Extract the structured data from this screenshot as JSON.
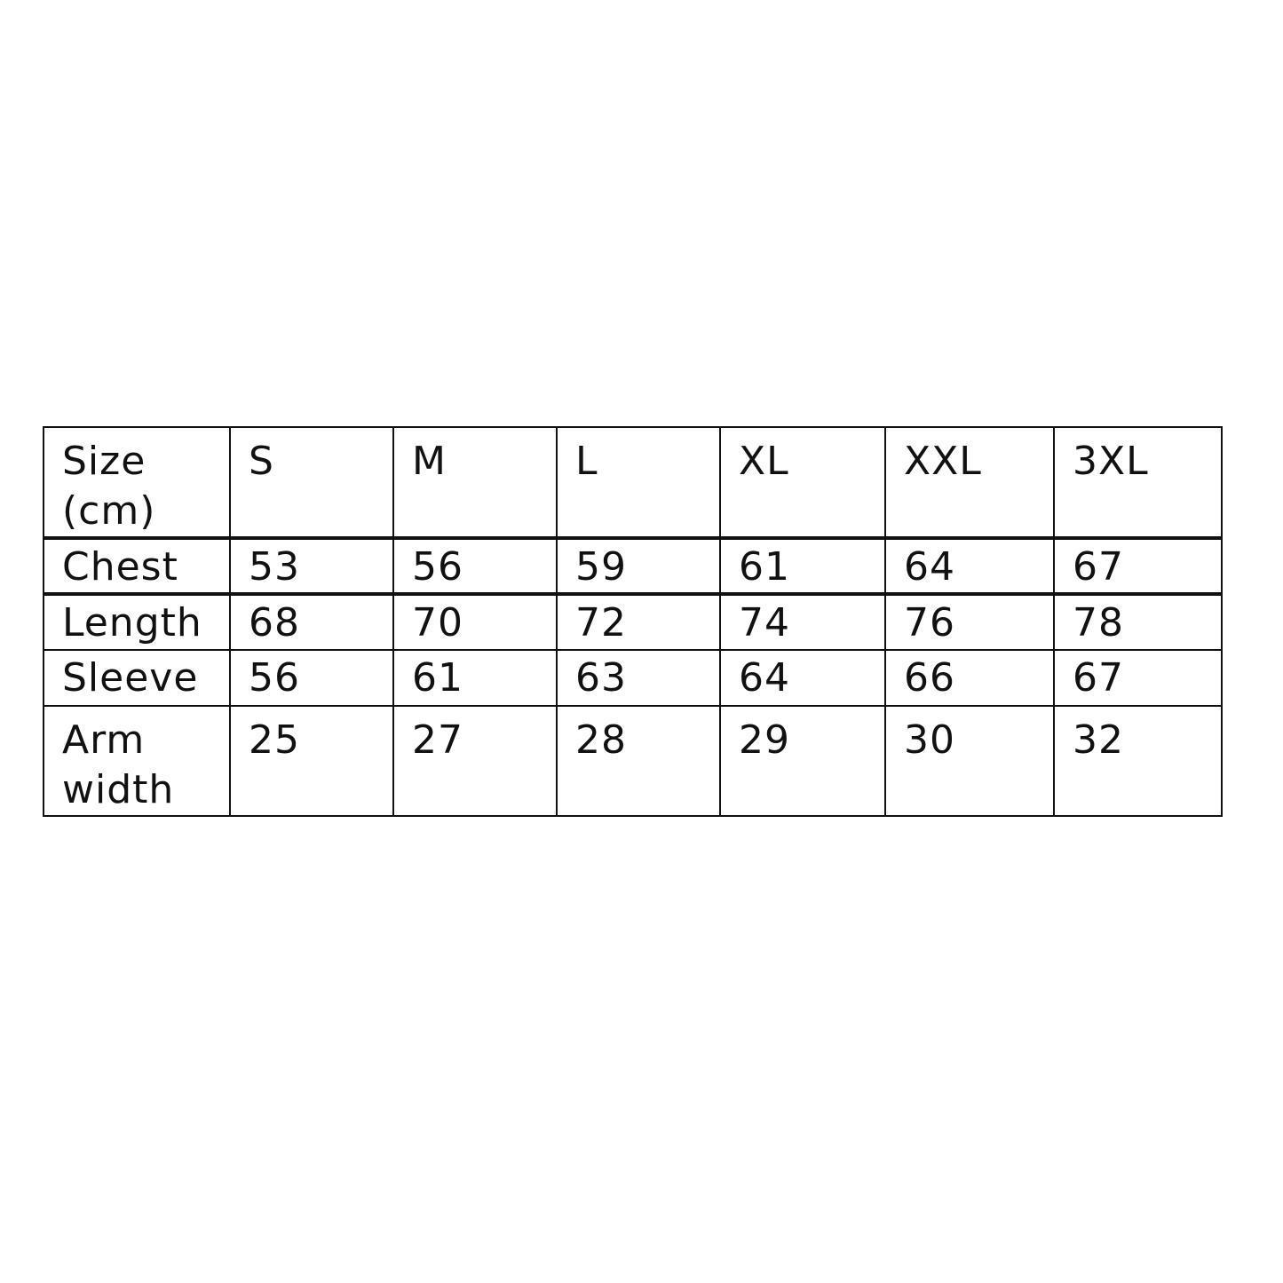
{
  "table": {
    "header": [
      "Size (cm)",
      "S",
      "M",
      "L",
      "XL",
      "XXL",
      "3XL"
    ],
    "rows": [
      [
        "Chest",
        "53",
        "56",
        "59",
        "61",
        "64",
        "67"
      ],
      [
        "Length",
        "68",
        "70",
        "72",
        "74",
        "76",
        "78"
      ],
      [
        "Sleeve",
        "56",
        "61",
        "63",
        "64",
        "66",
        "67"
      ],
      [
        "Arm width",
        "25",
        "27",
        "28",
        "29",
        "30",
        "32"
      ]
    ]
  }
}
